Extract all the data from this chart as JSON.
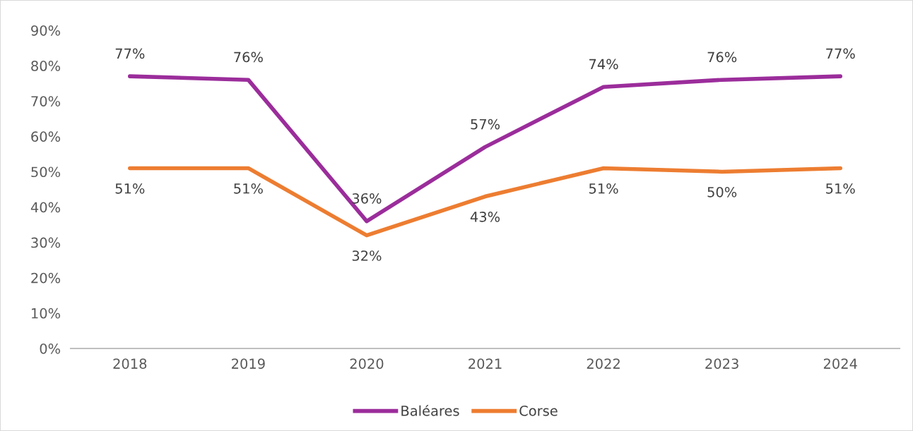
{
  "chart_data": {
    "type": "line",
    "categories": [
      "2018",
      "2019",
      "2020",
      "2021",
      "2022",
      "2023",
      "2024"
    ],
    "series": [
      {
        "name": "Baléares",
        "color": "#9b2d9b",
        "values": [
          77,
          76,
          36,
          57,
          74,
          76,
          77
        ],
        "value_labels": [
          "77%",
          "76%",
          "36%",
          "57%",
          "74%",
          "76%",
          "77%"
        ]
      },
      {
        "name": "Corse",
        "color": "#ed7d31",
        "values": [
          51,
          51,
          32,
          43,
          51,
          50,
          51
        ],
        "value_labels": [
          "51%",
          "51%",
          "32%",
          "43%",
          "51%",
          "50%",
          "51%"
        ]
      }
    ],
    "ylim": [
      0,
      90
    ],
    "yticks": [
      {
        "value": 0,
        "label": "0%"
      },
      {
        "value": 10,
        "label": "10%"
      },
      {
        "value": 20,
        "label": "20%"
      },
      {
        "value": 30,
        "label": "30%"
      },
      {
        "value": 40,
        "label": "40%"
      },
      {
        "value": 50,
        "label": "50%"
      },
      {
        "value": 60,
        "label": "60%"
      },
      {
        "value": 70,
        "label": "70%"
      },
      {
        "value": 80,
        "label": "80%"
      },
      {
        "value": 90,
        "label": "90%"
      }
    ],
    "grid": false,
    "legend": "bottom",
    "marker": "none",
    "line_style": "solid"
  }
}
